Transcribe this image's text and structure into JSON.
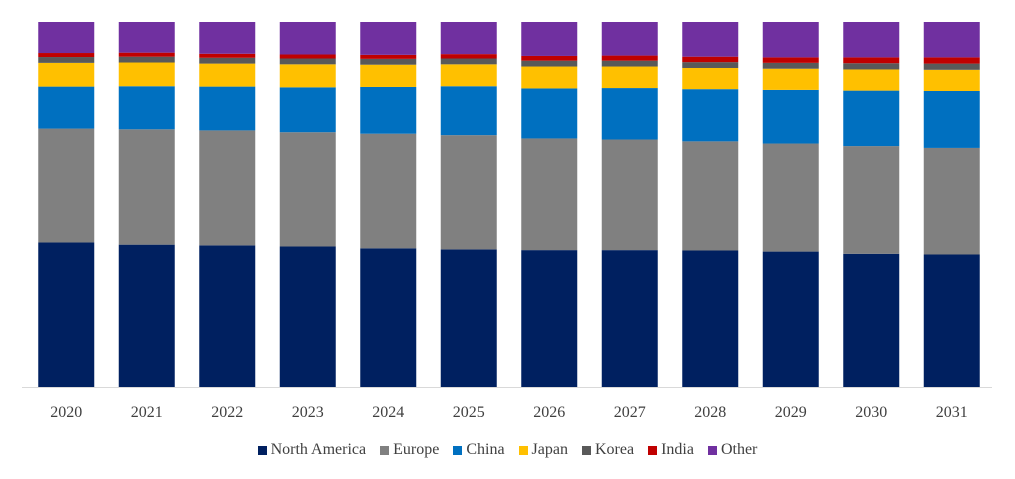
{
  "chart_data": {
    "type": "bar",
    "stacked": true,
    "normalized": true,
    "title": "",
    "xlabel": "",
    "ylabel": "",
    "ylim": [
      0,
      100
    ],
    "legend_position": "bottom",
    "grid": false,
    "categories": [
      "2020",
      "2021",
      "2022",
      "2023",
      "2024",
      "2025",
      "2026",
      "2027",
      "2028",
      "2029",
      "2030",
      "2031"
    ],
    "series": [
      {
        "name": "North America",
        "color": "#002060",
        "values": [
          39.6,
          39.0,
          38.8,
          38.5,
          38.0,
          37.7,
          37.5,
          37.5,
          37.4,
          37.1,
          36.5,
          36.3
        ]
      },
      {
        "name": "Europe",
        "color": "#808080",
        "values": [
          31.2,
          31.6,
          31.5,
          31.3,
          31.4,
          31.3,
          30.6,
          30.3,
          29.9,
          29.6,
          29.5,
          29.2
        ]
      },
      {
        "name": "China",
        "color": "#0070C0",
        "values": [
          11.5,
          11.8,
          12.0,
          12.3,
          12.8,
          13.4,
          13.7,
          14.1,
          14.3,
          14.7,
          15.2,
          15.6
        ]
      },
      {
        "name": "Japan",
        "color": "#FFC000",
        "values": [
          6.5,
          6.5,
          6.3,
          6.3,
          6.1,
          6.0,
          6.0,
          5.9,
          5.8,
          5.8,
          5.8,
          5.8
        ]
      },
      {
        "name": "Korea",
        "color": "#595959",
        "values": [
          1.6,
          1.6,
          1.6,
          1.6,
          1.6,
          1.6,
          1.6,
          1.6,
          1.6,
          1.6,
          1.7,
          1.7
        ]
      },
      {
        "name": "India",
        "color": "#C00000",
        "values": [
          1.1,
          1.1,
          1.1,
          1.1,
          1.1,
          1.2,
          1.3,
          1.4,
          1.5,
          1.5,
          1.6,
          1.7
        ]
      },
      {
        "name": "Other",
        "color": "#7030A0",
        "values": [
          8.5,
          8.4,
          8.7,
          8.9,
          9.0,
          8.8,
          9.3,
          9.2,
          9.5,
          9.7,
          9.7,
          9.7
        ]
      }
    ]
  }
}
